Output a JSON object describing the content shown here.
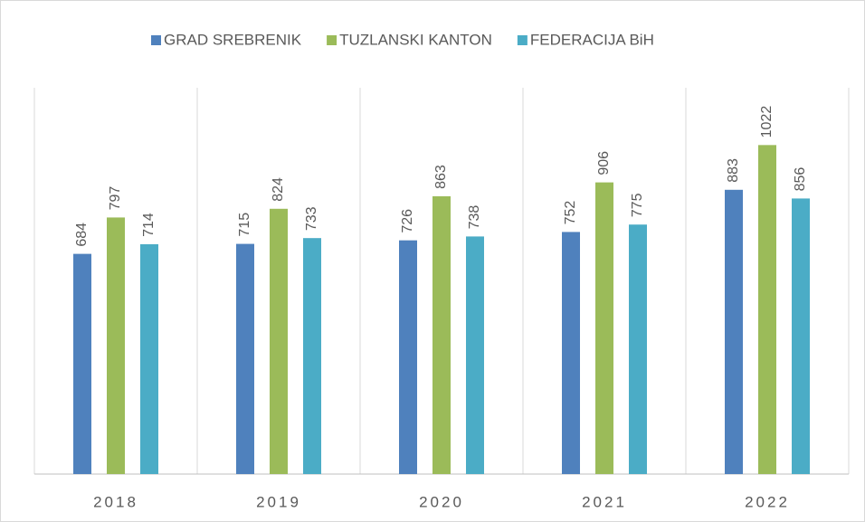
{
  "chart_data": {
    "type": "bar",
    "categories": [
      "2018",
      "2019",
      "2020",
      "2021",
      "2022"
    ],
    "series": [
      {
        "name": "GRAD SREBRENIK",
        "color": "#4f81bd",
        "values": [
          684,
          715,
          726,
          752,
          883
        ]
      },
      {
        "name": "TUZLANSKI KANTON",
        "color": "#9bbb59",
        "values": [
          797,
          824,
          863,
          906,
          1022
        ]
      },
      {
        "name": "FEDERACIJA BiH",
        "color": "#4bacc6",
        "values": [
          714,
          733,
          738,
          775,
          856
        ]
      }
    ],
    "ylim": [
      0,
      1200
    ],
    "legend": "top"
  }
}
